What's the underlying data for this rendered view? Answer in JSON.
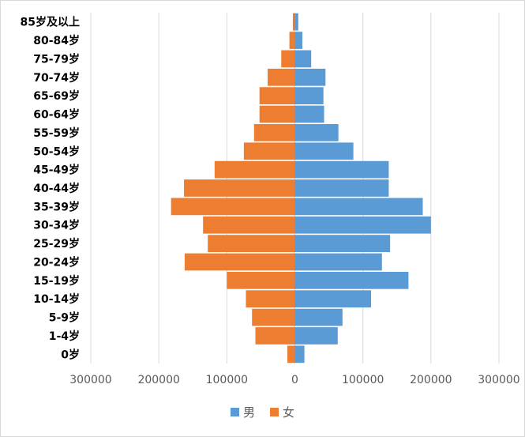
{
  "chart_data": {
    "type": "bar",
    "orientation": "horizontal",
    "style": "population-pyramid",
    "categories": [
      "0岁",
      "1-4岁",
      "5-9岁",
      "10-14岁",
      "15-19岁",
      "20-24岁",
      "25-29岁",
      "30-34岁",
      "35-39岁",
      "40-44岁",
      "45-49岁",
      "50-54岁",
      "55-59岁",
      "60-64岁",
      "65-69岁",
      "70-74岁",
      "75-79岁",
      "80-84岁",
      "85岁及以上"
    ],
    "series": [
      {
        "name": "男",
        "color": "#5b9bd5",
        "side": "right",
        "values": [
          14000,
          63000,
          70000,
          112000,
          167000,
          128000,
          140000,
          200000,
          188000,
          138000,
          138000,
          86000,
          64000,
          43000,
          42000,
          45000,
          24000,
          11000,
          5000
        ]
      },
      {
        "name": "女",
        "color": "#ed7d31",
        "side": "left",
        "values": [
          11000,
          58000,
          63000,
          72000,
          100000,
          162000,
          128000,
          135000,
          182000,
          163000,
          118000,
          75000,
          60000,
          52000,
          52000,
          40000,
          20000,
          8000,
          3000
        ]
      }
    ],
    "xlim": [
      -300000,
      300000
    ],
    "xticks": [
      -300000,
      -200000,
      -100000,
      0,
      100000,
      200000,
      300000
    ],
    "xtick_labels": [
      "300000",
      "200000",
      "100000",
      "0",
      "100000",
      "200000",
      "300000"
    ],
    "grid": "vertical",
    "legend_position": "bottom",
    "title": "",
    "xlabel": "",
    "ylabel": ""
  }
}
